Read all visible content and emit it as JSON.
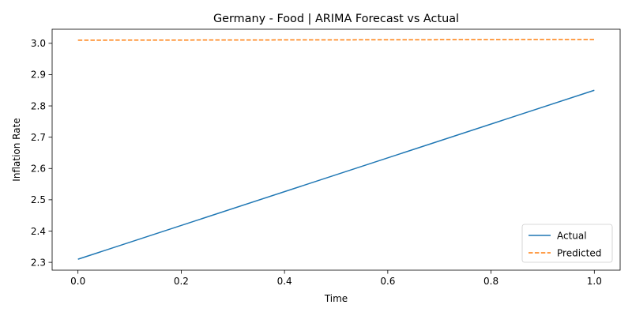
{
  "chart_data": {
    "type": "line",
    "title": "Germany - Food | ARIMA Forecast vs Actual",
    "xlabel": "Time",
    "ylabel": "Inflation Rate",
    "xlim": [
      -0.05,
      1.05
    ],
    "ylim": [
      2.275,
      3.045
    ],
    "xticks": [
      0.0,
      0.2,
      0.4,
      0.6,
      0.8,
      1.0
    ],
    "xtick_labels": [
      "0.0",
      "0.2",
      "0.4",
      "0.6",
      "0.8",
      "1.0"
    ],
    "yticks": [
      2.3,
      2.4,
      2.5,
      2.6,
      2.7,
      2.8,
      2.9,
      3.0
    ],
    "ytick_labels": [
      "2.3",
      "2.4",
      "2.5",
      "2.6",
      "2.7",
      "2.8",
      "2.9",
      "3.0"
    ],
    "grid": false,
    "legend_position": "bottom-right",
    "series": [
      {
        "name": "Actual",
        "color": "#1f77b4",
        "style": "solid",
        "x": [
          0.0,
          1.0
        ],
        "y": [
          2.31,
          2.85
        ]
      },
      {
        "name": "Predicted",
        "color": "#ff7f0e",
        "style": "dashed",
        "x": [
          0.0,
          1.0
        ],
        "y": [
          3.01,
          3.012
        ]
      }
    ]
  }
}
